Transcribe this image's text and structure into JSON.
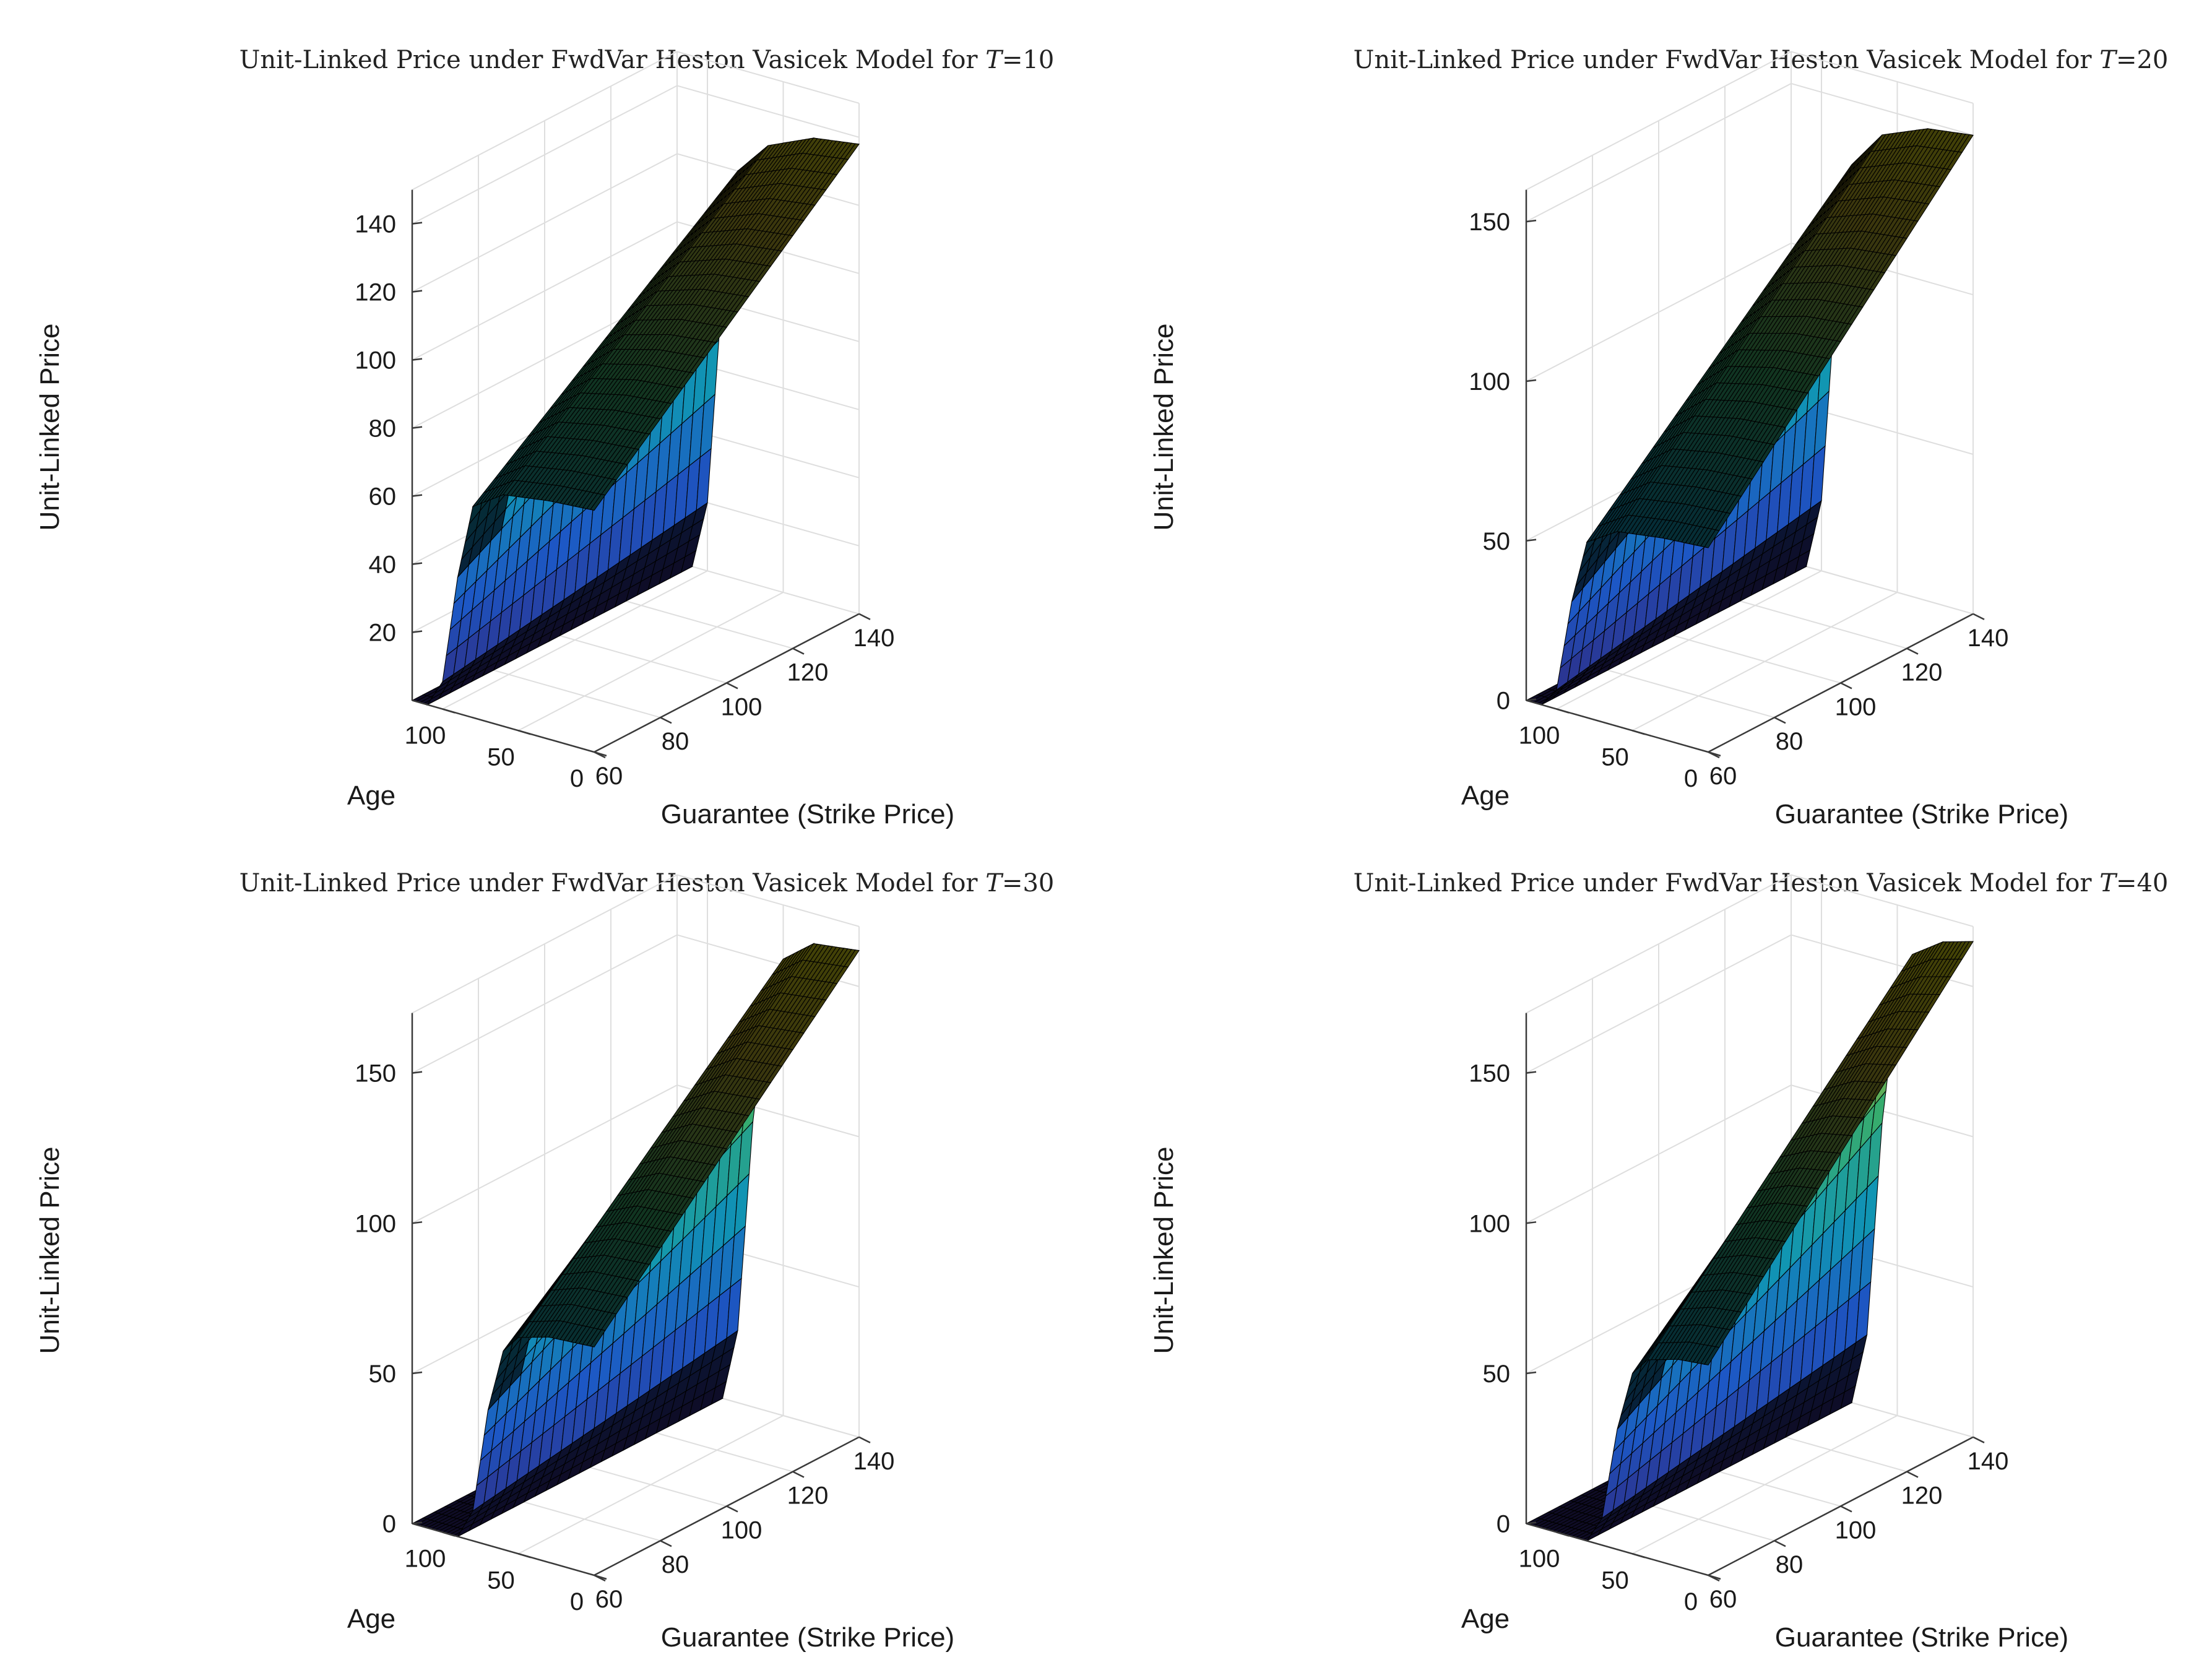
{
  "figure": {
    "layout": "2x2 grid of 3D surface plots",
    "colormap": [
      "#352a87",
      "#1f5fd6",
      "#12a2c3",
      "#3dbc74",
      "#d2c12f",
      "#f9fb0e"
    ]
  },
  "chart_data": [
    {
      "type": "surface3d",
      "title_prefix": "Unit-Linked Price under FwdVar Heston Vasicek Model for ",
      "title_var": "T",
      "title_eq": "=",
      "title_value": "10",
      "xlabel": "Guarantee (Strike Price)",
      "ylabel": "Age",
      "zlabel": "Unit-Linked Price",
      "xlim": [
        60,
        140
      ],
      "ylim": [
        0,
        120
      ],
      "zlim": [
        0,
        150
      ],
      "xticks": [
        60,
        80,
        100,
        120,
        140
      ],
      "yticks": [
        0,
        50,
        100
      ],
      "zticks": [
        20,
        40,
        60,
        80,
        100,
        120,
        140
      ],
      "grid": true,
      "surface": {
        "description": "Price is ~0 for ages above ~110, rises steeply between ages ~110 and ~80, then plateaus; plateau height grows linearly with the guarantee.",
        "age_steps": [
          0,
          30,
          60,
          80,
          90,
          100,
          110,
          120
        ],
        "price_at_guarantee_60": [
          71,
          70,
          68,
          62,
          40,
          8,
          0,
          0
        ],
        "price_at_guarantee_140": [
          138,
          136,
          130,
          120,
          85,
          20,
          0,
          0
        ]
      }
    },
    {
      "type": "surface3d",
      "title_prefix": "Unit-Linked Price under FwdVar Heston Vasicek Model for ",
      "title_var": "T",
      "title_eq": "=",
      "title_value": "20",
      "xlabel": "Guarantee (Strike Price)",
      "ylabel": "Age",
      "zlabel": "Unit-Linked Price",
      "xlim": [
        60,
        140
      ],
      "ylim": [
        0,
        120
      ],
      "zlim": [
        0,
        160
      ],
      "xticks": [
        60,
        80,
        100,
        120,
        140
      ],
      "yticks": [
        0,
        50,
        100
      ],
      "zticks": [
        0,
        50,
        100,
        150
      ],
      "grid": true,
      "surface": {
        "description": "Same sigmoid-in-age shape as T=10, with a slightly higher plateau.",
        "age_steps": [
          0,
          30,
          60,
          80,
          90,
          100,
          110,
          120
        ],
        "price_at_guarantee_60": [
          64,
          63,
          61,
          55,
          35,
          6,
          0,
          0
        ],
        "price_at_guarantee_140": [
          150,
          148,
          142,
          130,
          92,
          22,
          0,
          0
        ]
      }
    },
    {
      "type": "surface3d",
      "title_prefix": "Unit-Linked Price under FwdVar Heston Vasicek Model for ",
      "title_var": "T",
      "title_eq": "=",
      "title_value": "30",
      "xlabel": "Guarantee (Strike Price)",
      "ylabel": "Age",
      "zlabel": "Unit-Linked Price",
      "xlim": [
        60,
        140
      ],
      "ylim": [
        0,
        120
      ],
      "zlim": [
        0,
        170
      ],
      "xticks": [
        60,
        80,
        100,
        120,
        140
      ],
      "yticks": [
        0,
        50,
        100
      ],
      "zticks": [
        0,
        50,
        100,
        150
      ],
      "grid": true,
      "surface": {
        "description": "Drop-off begins at younger ages (~70) than for shorter maturities.",
        "age_steps": [
          0,
          30,
          50,
          60,
          70,
          80,
          90,
          120
        ],
        "price_at_guarantee_60": [
          76,
          75,
          72,
          66,
          45,
          10,
          0,
          0
        ],
        "price_at_guarantee_140": [
          162,
          160,
          152,
          138,
          95,
          24,
          0,
          0
        ]
      }
    },
    {
      "type": "surface3d",
      "title_prefix": "Unit-Linked Price under FwdVar Heston Vasicek Model for ",
      "title_var": "T",
      "title_eq": "=",
      "title_value": "40",
      "xlabel": "Guarantee (Strike Price)",
      "ylabel": "Age",
      "zlabel": "Unit-Linked Price",
      "xlim": [
        60,
        140
      ],
      "ylim": [
        0,
        120
      ],
      "zlim": [
        0,
        170
      ],
      "xticks": [
        60,
        80,
        100,
        120,
        140
      ],
      "yticks": [
        0,
        50,
        100
      ],
      "zticks": [
        0,
        50,
        100,
        150
      ],
      "grid": true,
      "surface": {
        "description": "Drop-off occurs at the youngest ages (~60); plateau highest of all maturities.",
        "age_steps": [
          0,
          20,
          40,
          50,
          60,
          70,
          80,
          120
        ],
        "price_at_guarantee_60": [
          70,
          69,
          66,
          60,
          40,
          9,
          0,
          0
        ],
        "price_at_guarantee_140": [
          165,
          162,
          155,
          140,
          96,
          24,
          0,
          0
        ]
      }
    }
  ]
}
